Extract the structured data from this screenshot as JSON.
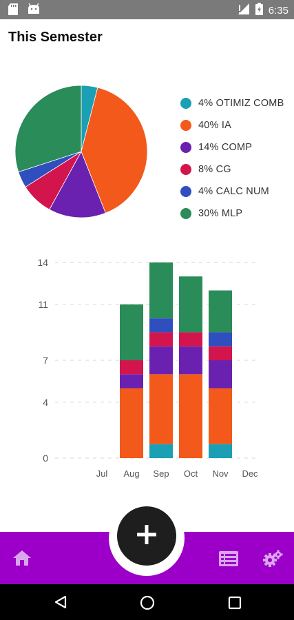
{
  "status_bar": {
    "time": "6:35",
    "icons": [
      "sd-card-icon",
      "android-icon",
      "signal-icon",
      "battery-icon"
    ]
  },
  "page": {
    "title": "This Semester"
  },
  "colors": {
    "teal": "#1a9fb5",
    "orange": "#f2591a",
    "purple": "#6a21b0",
    "crimson": "#d3154d",
    "blue": "#2f4fbf",
    "green": "#2a8c58",
    "bottom_bar": "#9c00c8",
    "bottom_icons": "#d9a6ee",
    "fab": "#1e1e1e"
  },
  "legend": [
    {
      "label": "4% OTIMIZ COMB",
      "color": "#1a9fb5"
    },
    {
      "label": "40% IA",
      "color": "#f2591a"
    },
    {
      "label": "14% COMP",
      "color": "#6a21b0"
    },
    {
      "label": "8% CG",
      "color": "#d3154d"
    },
    {
      "label": "4% CALC NUM",
      "color": "#2f4fbf"
    },
    {
      "label": "30% MLP",
      "color": "#2a8c58"
    }
  ],
  "chart_data": [
    {
      "type": "pie",
      "slices": [
        {
          "name": "OTIMIZ COMB",
          "value": 4,
          "color": "#1a9fb5"
        },
        {
          "name": "IA",
          "value": 40,
          "color": "#f2591a"
        },
        {
          "name": "COMP",
          "value": 14,
          "color": "#6a21b0"
        },
        {
          "name": "CG",
          "value": 8,
          "color": "#d3154d"
        },
        {
          "name": "CALC NUM",
          "value": 4,
          "color": "#2f4fbf"
        },
        {
          "name": "MLP",
          "value": 30,
          "color": "#2a8c58"
        }
      ]
    },
    {
      "type": "bar",
      "stacked": true,
      "categories": [
        "Jul",
        "Aug",
        "Sep",
        "Oct",
        "Nov",
        "Dec"
      ],
      "yticks": [
        0,
        4,
        7,
        11,
        14
      ],
      "ylim": [
        0,
        14
      ],
      "grid": true,
      "series": [
        {
          "name": "OTIMIZ COMB",
          "color": "#1a9fb5",
          "values": [
            0,
            0,
            1,
            0,
            1,
            0
          ]
        },
        {
          "name": "IA",
          "color": "#f2591a",
          "values": [
            0,
            5,
            5,
            6,
            4,
            0
          ]
        },
        {
          "name": "COMP",
          "color": "#6a21b0",
          "values": [
            0,
            1,
            2,
            2,
            2,
            0
          ]
        },
        {
          "name": "CG",
          "color": "#d3154d",
          "values": [
            0,
            1,
            1,
            1,
            1,
            0
          ]
        },
        {
          "name": "CALC NUM",
          "color": "#2f4fbf",
          "values": [
            0,
            0,
            1,
            0,
            1,
            0
          ]
        },
        {
          "name": "MLP",
          "color": "#2a8c58",
          "values": [
            0,
            4,
            4,
            4,
            3,
            0
          ]
        }
      ]
    }
  ],
  "bottom_bar": {
    "fab_icon": "plus-icon",
    "left_icon": "home-icon",
    "right_icons": [
      "list-icon",
      "settings-gears-icon"
    ]
  },
  "nav_bar": {
    "icons": [
      "back-icon",
      "home-circle-icon",
      "recents-icon"
    ]
  }
}
